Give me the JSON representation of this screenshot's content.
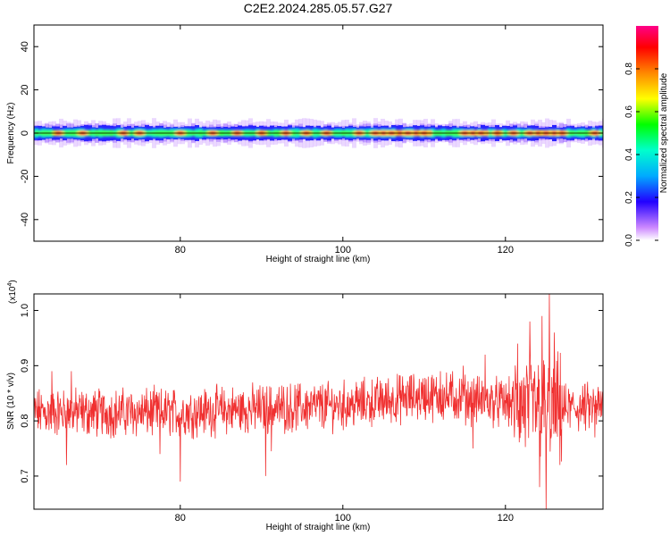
{
  "figure_title": "C2E2.2024.285.05.57.G27",
  "colorbar": {
    "label": "Normalized spectral amplitude",
    "tick_labels": [
      "0.0",
      "0.2",
      "0.4",
      "0.6",
      "0.8"
    ],
    "range": [
      0,
      1
    ]
  },
  "chart_data": [
    {
      "type": "heatmap",
      "xlabel": "Height of straight line (km)",
      "ylabel": "Frequency (Hz)",
      "xlim": [
        62,
        132
      ],
      "ylim": [
        -50,
        50
      ],
      "x_ticks": [
        80,
        100,
        120
      ],
      "y_ticks": [
        -40,
        -20,
        0,
        20,
        40
      ],
      "x_tick_labels": [
        "80",
        "100",
        "120"
      ],
      "y_tick_labels": [
        "-40",
        "-20",
        "0",
        "20",
        "40"
      ],
      "band": {
        "center_hz": 0,
        "core_half_width_hz": 2.5,
        "outer_half_width_hz": 5,
        "hot_spots_km": [
          65,
          68,
          73,
          75,
          80,
          84,
          87,
          90,
          93,
          95.5,
          98,
          102,
          104,
          106,
          108,
          110,
          115,
          117,
          119,
          121,
          123,
          125,
          127,
          131
        ],
        "hot_spans_km": [
          [
            104,
            111
          ],
          [
            115,
            118
          ],
          [
            123.5,
            127
          ]
        ]
      }
    },
    {
      "type": "line",
      "xlabel": "Height of straight line (km)",
      "ylabel": "SNR (10 * v/v)",
      "y_multiplier_label": "(x10",
      "y_multiplier_exp": "4",
      "y_multiplier_close": ")",
      "xlim": [
        62,
        132
      ],
      "ylim": [
        0.64,
        1.03
      ],
      "x_ticks": [
        80,
        100,
        120
      ],
      "y_ticks": [
        0.7,
        0.8,
        0.9,
        1.0
      ],
      "x_tick_labels": [
        "80",
        "100",
        "120"
      ],
      "y_tick_labels": [
        "0.7",
        "0.8",
        "0.9",
        "1.0"
      ],
      "color": "#f03030",
      "baseline_trend": [
        {
          "x": 62,
          "y": 0.815
        },
        {
          "x": 80,
          "y": 0.815
        },
        {
          "x": 90,
          "y": 0.822
        },
        {
          "x": 100,
          "y": 0.828
        },
        {
          "x": 110,
          "y": 0.845
        },
        {
          "x": 115,
          "y": 0.84
        },
        {
          "x": 120,
          "y": 0.832
        },
        {
          "x": 126,
          "y": 0.82
        },
        {
          "x": 132,
          "y": 0.825
        }
      ],
      "noise_amplitude": 0.035,
      "spikes": [
        {
          "x": 64.2,
          "y": 0.89
        },
        {
          "x": 66.0,
          "y": 0.72
        },
        {
          "x": 66.6,
          "y": 0.89
        },
        {
          "x": 77.5,
          "y": 0.74
        },
        {
          "x": 80.0,
          "y": 0.69
        },
        {
          "x": 90.5,
          "y": 0.7
        },
        {
          "x": 91.2,
          "y": 0.745
        },
        {
          "x": 110.5,
          "y": 0.88
        },
        {
          "x": 112.0,
          "y": 0.89
        },
        {
          "x": 113.5,
          "y": 0.89
        },
        {
          "x": 114.8,
          "y": 0.9
        },
        {
          "x": 116.0,
          "y": 0.75
        },
        {
          "x": 117.5,
          "y": 0.92
        },
        {
          "x": 121.5,
          "y": 0.94
        },
        {
          "x": 123.0,
          "y": 0.98
        },
        {
          "x": 124.2,
          "y": 0.68
        },
        {
          "x": 124.5,
          "y": 0.99
        },
        {
          "x": 125.0,
          "y": 0.64
        },
        {
          "x": 125.4,
          "y": 1.03
        },
        {
          "x": 126.0,
          "y": 0.96
        },
        {
          "x": 126.7,
          "y": 0.72
        },
        {
          "x": 131.0,
          "y": 0.77
        }
      ]
    }
  ]
}
